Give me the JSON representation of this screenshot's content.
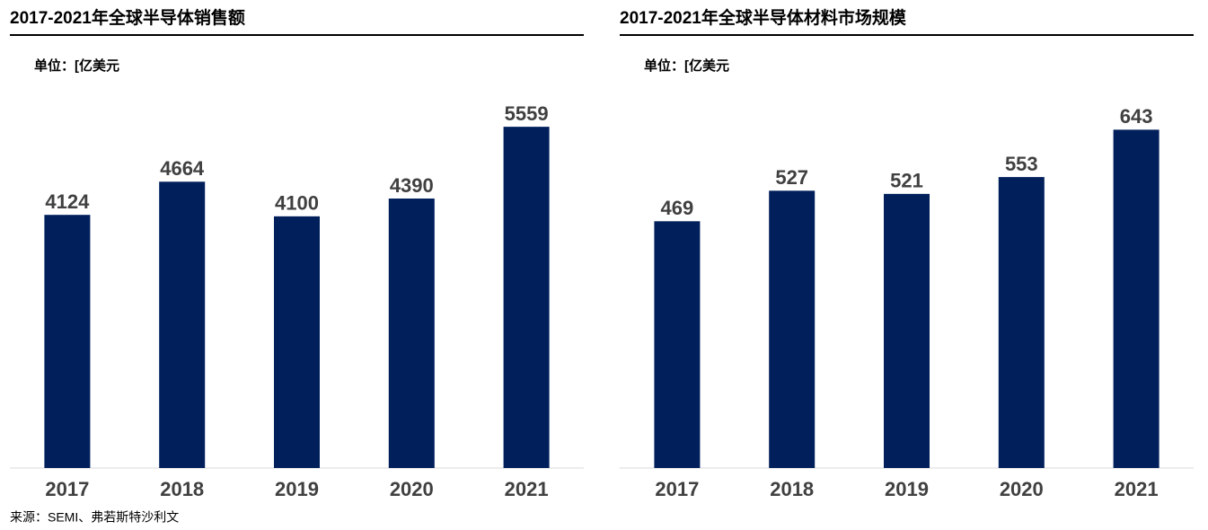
{
  "chart_data": [
    {
      "type": "bar",
      "title": "2017-2021年全球半导体销售额",
      "subtitle": "单位：[亿美元",
      "categories": [
        "2017",
        "2018",
        "2019",
        "2020",
        "2021"
      ],
      "values": [
        4124,
        4664,
        4100,
        4390,
        5559
      ],
      "color": "#001f5b",
      "ylim": [
        0,
        6000
      ]
    },
    {
      "type": "bar",
      "title": "2017-2021年全球半导体材料市场规模",
      "subtitle": "单位：[亿美元",
      "categories": [
        "2017",
        "2018",
        "2019",
        "2020",
        "2021"
      ],
      "values": [
        469,
        527,
        521,
        553,
        643
      ],
      "color": "#001f5b",
      "ylim": [
        0,
        700
      ]
    }
  ],
  "source": "来源：SEMI、弗若斯特沙利文"
}
